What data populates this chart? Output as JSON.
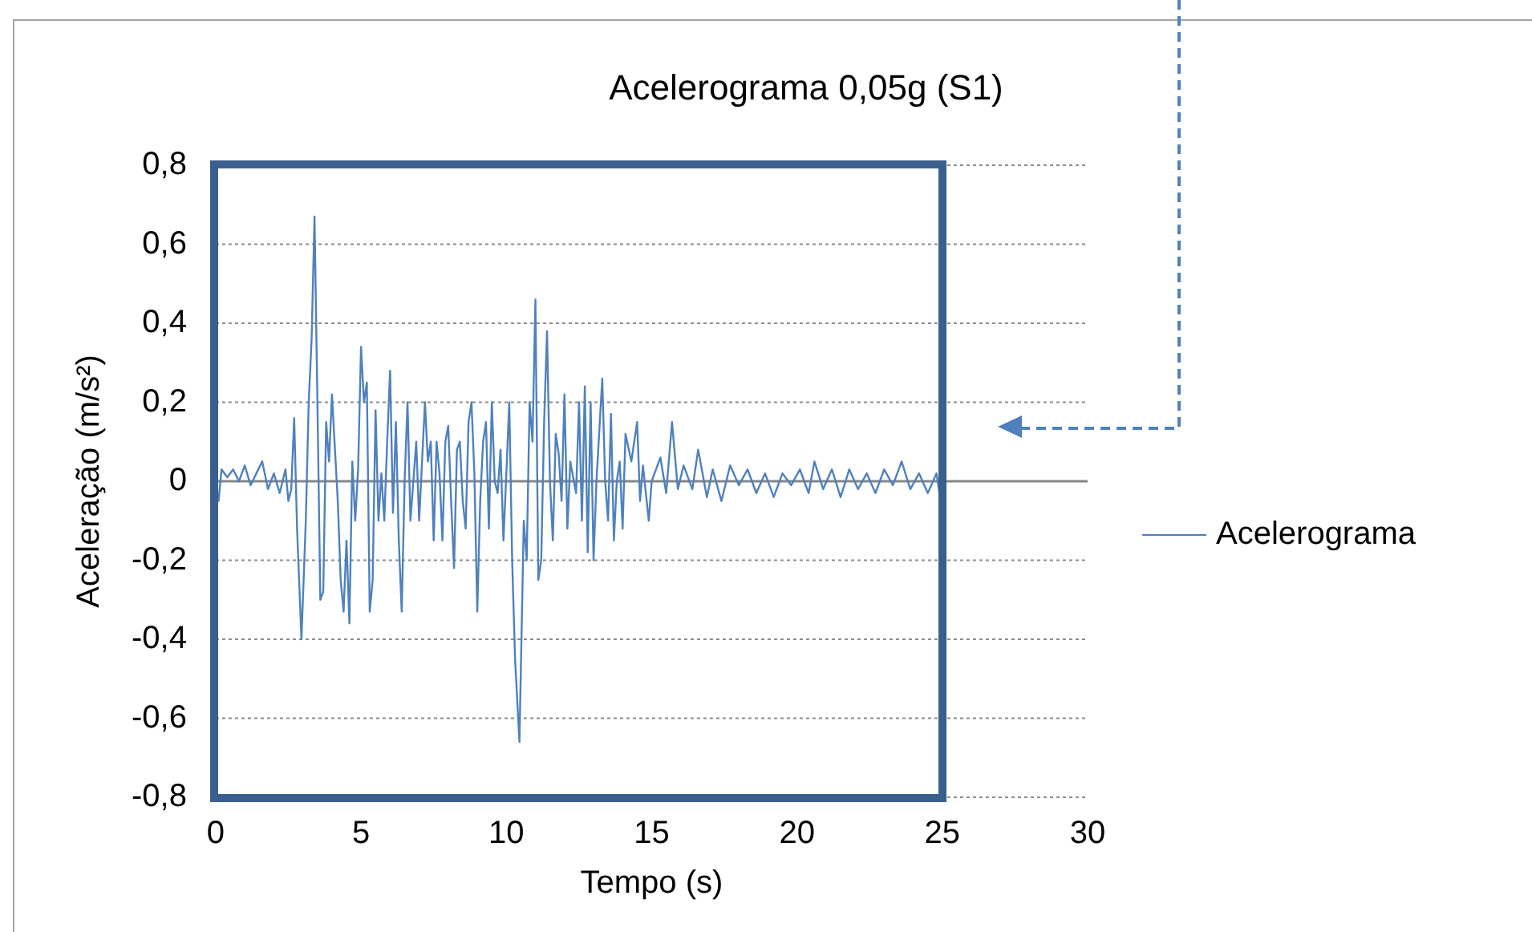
{
  "chart_data": {
    "type": "line",
    "title": "Acelerograma 0,05g (S1)",
    "xlabel": "Tempo (s)",
    "ylabel": "Aceleração (m/s²)",
    "xlim": [
      0,
      30
    ],
    "xticks": [
      0,
      5,
      10,
      15,
      20,
      25,
      30
    ],
    "ylim": [
      -0.8,
      0.8
    ],
    "yticks": [
      {
        "value": -0.8,
        "label": "-0,8"
      },
      {
        "value": -0.6,
        "label": "-0,6"
      },
      {
        "value": -0.4,
        "label": "-0,4"
      },
      {
        "value": -0.2,
        "label": "-0,2"
      },
      0,
      {
        "value": 0.2,
        "label": "0,2"
      },
      {
        "value": 0.4,
        "label": "0,4"
      },
      {
        "value": 0.6,
        "label": "0,6"
      },
      {
        "value": 0.8,
        "label": "0,8"
      }
    ],
    "grid": "y",
    "legend": "right",
    "marker": "none",
    "line_style": "solid",
    "series": [
      {
        "name": "Acelerograma",
        "color": "#4f81bd",
        "x": [
          0,
          0.1,
          0.2,
          0.4,
          0.6,
          0.8,
          1.0,
          1.2,
          1.4,
          1.6,
          1.8,
          2.0,
          2.2,
          2.4,
          2.5,
          2.6,
          2.7,
          2.8,
          2.95,
          3.1,
          3.2,
          3.3,
          3.4,
          3.5,
          3.6,
          3.7,
          3.8,
          3.9,
          4.0,
          4.2,
          4.3,
          4.4,
          4.5,
          4.6,
          4.7,
          4.8,
          4.9,
          5.0,
          5.1,
          5.2,
          5.3,
          5.4,
          5.5,
          5.6,
          5.7,
          5.8,
          5.9,
          6.0,
          6.1,
          6.2,
          6.3,
          6.4,
          6.5,
          6.6,
          6.7,
          6.8,
          6.9,
          7.0,
          7.2,
          7.3,
          7.4,
          7.5,
          7.6,
          7.7,
          7.8,
          7.9,
          8.0,
          8.1,
          8.2,
          8.3,
          8.4,
          8.5,
          8.6,
          8.7,
          8.8,
          8.9,
          9.0,
          9.1,
          9.2,
          9.3,
          9.4,
          9.5,
          9.6,
          9.7,
          9.8,
          9.9,
          10.0,
          10.1,
          10.2,
          10.3,
          10.45,
          10.6,
          10.7,
          10.8,
          10.9,
          11.0,
          11.1,
          11.2,
          11.3,
          11.4,
          11.5,
          11.6,
          11.7,
          11.8,
          11.9,
          12.0,
          12.1,
          12.2,
          12.4,
          12.5,
          12.6,
          12.7,
          12.8,
          12.9,
          13.0,
          13.1,
          13.3,
          13.4,
          13.5,
          13.6,
          13.7,
          13.8,
          13.9,
          14.0,
          14.1,
          14.3,
          14.5,
          14.6,
          14.7,
          14.9,
          15.0,
          15.3,
          15.5,
          15.7,
          15.9,
          16.1,
          16.4,
          16.6,
          16.9,
          17.1,
          17.4,
          17.7,
          18.0,
          18.3,
          18.6,
          18.9,
          19.2,
          19.5,
          19.8,
          20.1,
          20.4,
          20.6,
          20.9,
          21.2,
          21.5,
          21.8,
          22.1,
          22.4,
          22.7,
          23.0,
          23.3,
          23.6,
          23.9,
          24.2,
          24.5,
          24.8,
          24.9,
          25.0
        ],
        "values": [
          0,
          -0.05,
          0.03,
          0.01,
          0.03,
          0,
          0.04,
          -0.01,
          0.02,
          0.05,
          -0.02,
          0.02,
          -0.03,
          0.03,
          -0.05,
          -0.02,
          0.16,
          -0.12,
          -0.4,
          -0.1,
          0.2,
          0.36,
          0.67,
          0.2,
          -0.3,
          -0.28,
          0.15,
          0.05,
          0.22,
          -0.05,
          -0.25,
          -0.33,
          -0.15,
          -0.36,
          0.05,
          -0.1,
          0.03,
          0.34,
          0.2,
          0.25,
          -0.33,
          -0.25,
          0.18,
          -0.1,
          0.02,
          -0.1,
          0.1,
          0.28,
          -0.08,
          0.15,
          -0.15,
          -0.33,
          0,
          0.2,
          -0.1,
          0,
          0.1,
          -0.1,
          0.2,
          0.05,
          0.1,
          -0.15,
          0.1,
          0.02,
          -0.15,
          0.1,
          0.14,
          -0.05,
          -0.22,
          0.08,
          0.1,
          -0.05,
          -0.12,
          0.15,
          0.2,
          0.02,
          -0.33,
          -0.05,
          0.1,
          0.15,
          -0.12,
          0.2,
          0,
          -0.03,
          0.08,
          -0.15,
          0.02,
          0.2,
          -0.2,
          -0.45,
          -0.66,
          -0.1,
          -0.2,
          0.2,
          0.1,
          0.46,
          -0.25,
          -0.2,
          0.15,
          0.38,
          0,
          -0.15,
          0.12,
          0.07,
          -0.05,
          0.22,
          -0.12,
          0.05,
          -0.03,
          0.2,
          -0.1,
          0.24,
          -0.18,
          0.2,
          -0.2,
          0,
          0.26,
          0,
          -0.1,
          0.17,
          -0.15,
          0,
          0.05,
          -0.12,
          0.12,
          0.05,
          0.15,
          -0.05,
          0.04,
          -0.1,
          0,
          0.06,
          -0.03,
          0.15,
          -0.02,
          0.04,
          -0.02,
          0.08,
          -0.04,
          0.03,
          -0.05,
          0.04,
          -0.01,
          0.03,
          -0.03,
          0.02,
          -0.04,
          0.02,
          -0.01,
          0.03,
          -0.03,
          0.05,
          -0.02,
          0.03,
          -0.04,
          0.03,
          -0.02,
          0.02,
          -0.03,
          0.03,
          -0.01,
          0.05,
          -0.02,
          0.02,
          -0.03,
          0.02,
          -0.03,
          0
        ]
      }
    ]
  }
}
